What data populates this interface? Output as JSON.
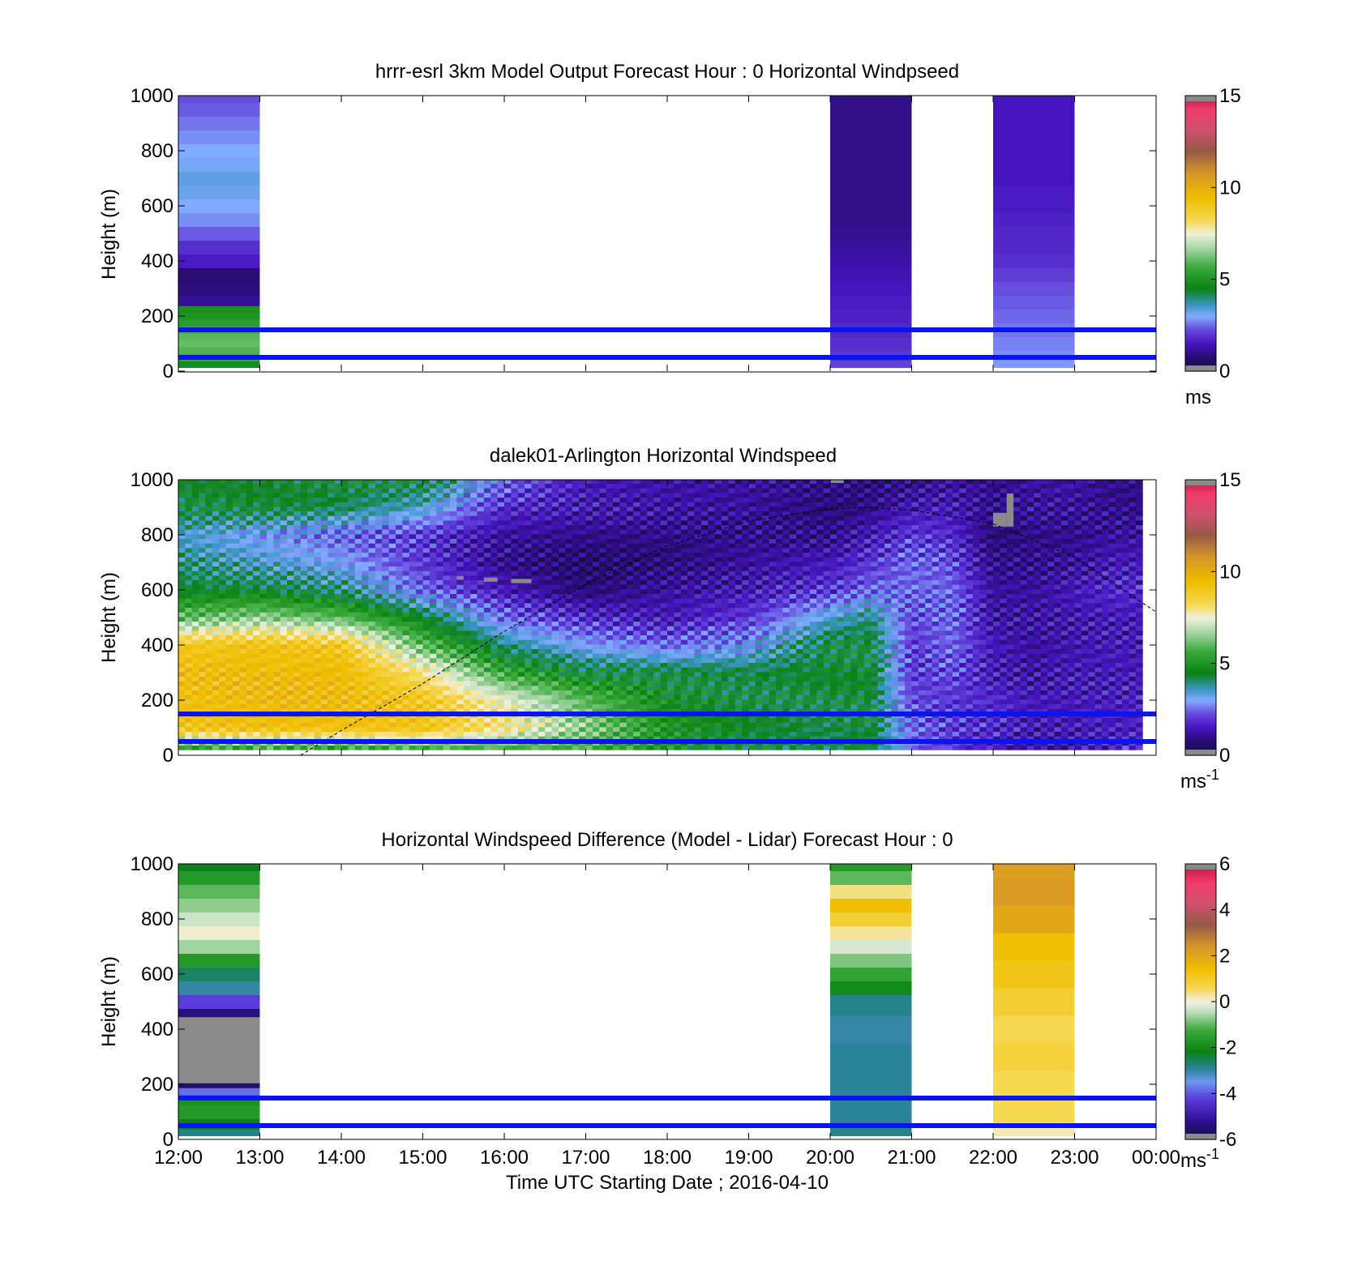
{
  "figure": {
    "xlabel": "Time UTC  Starting Date ; 2016-04-10",
    "time_ticks": [
      "12:00",
      "13:00",
      "14:00",
      "15:00",
      "16:00",
      "17:00",
      "18:00",
      "19:00",
      "20:00",
      "21:00",
      "22:00",
      "23:00",
      "00:00"
    ]
  },
  "chart_data": [
    {
      "type": "heatmap",
      "title": "hrrr-esrl 3km Model Output   Forecast Hour : 0 Horizontal Windpseed",
      "ylabel": "Height (m)",
      "ylim": [
        0,
        1000
      ],
      "yticks": [
        0,
        200,
        400,
        600,
        800,
        1000
      ],
      "xlim_hours": [
        12,
        24
      ],
      "colorbar": {
        "ticks": [
          "0",
          "5",
          "10",
          "15"
        ],
        "range": [
          0,
          15
        ],
        "unit": "ms",
        "unit_sup": "",
        "palette": "speed"
      },
      "reference_lines_m": [
        50,
        150
      ],
      "columns": [
        {
          "time_start": "12:00",
          "time_end": "13:00",
          "height_values": [
            [
              25,
              4.8
            ],
            [
              50,
              5.6
            ],
            [
              75,
              5.9
            ],
            [
              100,
              6.1
            ],
            [
              125,
              6.0
            ],
            [
              150,
              5.8
            ],
            [
              175,
              5.3
            ],
            [
              200,
              5.0
            ],
            [
              225,
              4.9
            ],
            [
              250,
              1.1
            ],
            [
              300,
              0.9
            ],
            [
              350,
              0.8
            ],
            [
              400,
              1.6
            ],
            [
              450,
              1.9
            ],
            [
              500,
              2.4
            ],
            [
              550,
              2.8
            ],
            [
              600,
              3.0
            ],
            [
              650,
              3.2
            ],
            [
              700,
              3.3
            ],
            [
              750,
              3.1
            ],
            [
              800,
              3.0
            ],
            [
              850,
              2.8
            ],
            [
              900,
              2.6
            ],
            [
              950,
              2.4
            ],
            [
              1000,
              2.3
            ]
          ]
        },
        {
          "time_start": "20:00",
          "time_end": "21:00",
          "height_values": [
            [
              25,
              2.2
            ],
            [
              50,
              2.0
            ],
            [
              100,
              1.9
            ],
            [
              150,
              1.8
            ],
            [
              200,
              1.7
            ],
            [
              250,
              1.6
            ],
            [
              300,
              1.5
            ],
            [
              350,
              1.4
            ],
            [
              400,
              1.3
            ],
            [
              450,
              1.2
            ],
            [
              500,
              1.1
            ],
            [
              550,
              1.0
            ],
            [
              600,
              1.0
            ],
            [
              650,
              1.0
            ],
            [
              700,
              1.0
            ],
            [
              750,
              1.0
            ],
            [
              800,
              1.0
            ],
            [
              850,
              1.0
            ],
            [
              900,
              1.0
            ],
            [
              950,
              1.0
            ],
            [
              1000,
              1.0
            ]
          ]
        },
        {
          "time_start": "22:00",
          "time_end": "23:00",
          "height_values": [
            [
              25,
              2.9
            ],
            [
              50,
              2.8
            ],
            [
              100,
              2.7
            ],
            [
              150,
              2.6
            ],
            [
              200,
              2.5
            ],
            [
              250,
              2.4
            ],
            [
              300,
              2.3
            ],
            [
              350,
              2.1
            ],
            [
              400,
              1.9
            ],
            [
              450,
              1.8
            ],
            [
              500,
              1.8
            ],
            [
              550,
              1.7
            ],
            [
              600,
              1.6
            ],
            [
              650,
              1.6
            ],
            [
              700,
              1.5
            ],
            [
              750,
              1.5
            ],
            [
              800,
              1.5
            ],
            [
              850,
              1.5
            ],
            [
              900,
              1.5
            ],
            [
              950,
              1.5
            ],
            [
              1000,
              1.5
            ]
          ]
        }
      ]
    },
    {
      "type": "heatmap",
      "title": "dalek01-Arlington  Horizontal Windspeed",
      "ylabel": "Height (m)",
      "ylim": [
        0,
        1000
      ],
      "yticks": [
        0,
        200,
        400,
        600,
        800,
        1000
      ],
      "xlim_hours": [
        12,
        24
      ],
      "colorbar": {
        "ticks": [
          "0",
          "5",
          "10",
          "15"
        ],
        "range": [
          0,
          15
        ],
        "unit": "ms",
        "unit_sup": "-1",
        "palette": "speed"
      },
      "reference_lines_m": [
        50,
        150
      ],
      "overlay_curve_points": [
        [
          13.5,
          0
        ],
        [
          14,
          90
        ],
        [
          15,
          260
        ],
        [
          16,
          450
        ],
        [
          17,
          620
        ],
        [
          18,
          760
        ],
        [
          19,
          850
        ],
        [
          20,
          895
        ],
        [
          20.5,
          900
        ],
        [
          21,
          890
        ],
        [
          22,
          840
        ],
        [
          23,
          720
        ],
        [
          24,
          520
        ]
      ],
      "profile_times_h": [
        12,
        13,
        14,
        15,
        16,
        17,
        18,
        19,
        20,
        20.5,
        21,
        21.5,
        22,
        22.5,
        23,
        23.5,
        24
      ],
      "profile_heights_m": [
        0,
        100,
        200,
        300,
        400,
        500,
        600,
        700,
        800,
        900,
        1000
      ],
      "profiles": [
        [
          4.0,
          9.2,
          9.3,
          9.4,
          9.0,
          6.0,
          4.5,
          4.0,
          3.5,
          4.5,
          4.5
        ],
        [
          4.2,
          9.4,
          9.5,
          9.5,
          9.2,
          6.5,
          4.5,
          3.5,
          3.0,
          4.5,
          4.5
        ],
        [
          4.0,
          9.3,
          9.5,
          9.5,
          9.0,
          6.0,
          4.0,
          3.0,
          2.5,
          4.2,
          4.5
        ],
        [
          4.5,
          9.2,
          9.0,
          8.0,
          6.0,
          4.5,
          2.5,
          2.0,
          2.0,
          3.5,
          4.5
        ],
        [
          5.0,
          8.0,
          7.5,
          5.5,
          4.0,
          2.5,
          1.5,
          1.0,
          1.2,
          1.8,
          2.5
        ],
        [
          5.5,
          6.5,
          6.0,
          4.5,
          3.0,
          1.8,
          0.8,
          0.6,
          1.0,
          1.5,
          1.5
        ],
        [
          5.0,
          5.0,
          4.8,
          4.5,
          2.5,
          1.5,
          1.2,
          0.8,
          1.0,
          1.3,
          1.3
        ],
        [
          4.5,
          4.5,
          4.5,
          4.3,
          3.0,
          2.0,
          1.5,
          1.2,
          1.0,
          1.2,
          1.2
        ],
        [
          4.2,
          4.2,
          4.5,
          4.5,
          4.5,
          3.5,
          2.0,
          1.5,
          1.0,
          0.8,
          1.0
        ],
        [
          4.5,
          4.5,
          4.5,
          4.5,
          4.5,
          4.0,
          2.5,
          2.0,
          1.5,
          1.0,
          0.8
        ],
        [
          2.5,
          2.5,
          2.2,
          2.0,
          2.0,
          2.2,
          2.5,
          2.5,
          2.0,
          1.5,
          1.0
        ],
        [
          2.0,
          2.0,
          2.0,
          2.2,
          2.5,
          2.5,
          2.5,
          2.2,
          1.8,
          1.5,
          1.2
        ],
        [
          1.5,
          1.8,
          1.8,
          1.5,
          1.5,
          1.3,
          1.2,
          1.0,
          0.8,
          1.0,
          1.0
        ],
        [
          1.2,
          1.5,
          1.5,
          1.3,
          1.2,
          1.3,
          1.2,
          1.0,
          1.0,
          1.2,
          1.2
        ],
        [
          1.3,
          1.5,
          1.5,
          1.5,
          1.4,
          1.4,
          1.5,
          1.2,
          1.0,
          1.2,
          1.3
        ],
        [
          1.8,
          1.6,
          1.6,
          1.5,
          1.5,
          1.5,
          1.8,
          1.5,
          1.2,
          1.0,
          1.0
        ],
        [
          1.8,
          1.6,
          1.6,
          1.5,
          1.5,
          1.5,
          1.8,
          1.5,
          1.2,
          1.0,
          1.0
        ]
      ],
      "missing_patches": [
        {
          "time_start": "22:00",
          "time_end": "22:10",
          "height_start": 830,
          "height_end": 880
        },
        {
          "time_start": "22:10",
          "time_end": "22:15",
          "height_start": 830,
          "height_end": 950
        },
        {
          "time_start": "20:00",
          "time_end": "20:10",
          "height_start": 1000,
          "height_end": 1000
        },
        {
          "time_start": "15:25",
          "time_end": "15:30",
          "height_start": 640,
          "height_end": 650
        },
        {
          "time_start": "15:45",
          "time_end": "15:55",
          "height_start": 630,
          "height_end": 645
        },
        {
          "time_start": "16:05",
          "time_end": "16:20",
          "height_start": 625,
          "height_end": 640
        }
      ]
    },
    {
      "type": "heatmap",
      "title": "Horizontal Windspeed Difference (Model - Lidar) Forecast Hour : 0",
      "ylabel": "Height (m)",
      "ylim": [
        0,
        1000
      ],
      "yticks": [
        0,
        200,
        400,
        600,
        800,
        1000
      ],
      "xlim_hours": [
        12,
        24
      ],
      "colorbar": {
        "ticks": [
          "-6",
          "-4",
          "-2",
          "0",
          "2",
          "4",
          "6"
        ],
        "range": [
          -6,
          6
        ],
        "unit": "ms",
        "unit_sup": "-1",
        "palette": "diff"
      },
      "reference_lines_m": [
        50,
        150
      ],
      "columns": [
        {
          "time_start": "12:00",
          "time_end": "13:00",
          "height_values": [
            [
              25,
              -2.8
            ],
            [
              50,
              -2.2
            ],
            [
              100,
              -1.6
            ],
            [
              150,
              -1.8
            ],
            [
              175,
              -3.8
            ],
            [
              200,
              -5.5
            ],
            [
              210,
              "missing"
            ],
            [
              440,
              "missing"
            ],
            [
              450,
              -5.4
            ],
            [
              500,
              -4.2
            ],
            [
              550,
              -3.0
            ],
            [
              600,
              -2.6
            ],
            [
              650,
              -1.6
            ],
            [
              700,
              -0.6
            ],
            [
              750,
              0.1
            ],
            [
              800,
              -0.3
            ],
            [
              850,
              -0.7
            ],
            [
              900,
              -1.0
            ],
            [
              950,
              -1.6
            ],
            [
              1000,
              -2.2
            ]
          ]
        },
        {
          "time_start": "20:00",
          "time_end": "21:00",
          "height_values": [
            [
              25,
              -2.8
            ],
            [
              100,
              -2.9
            ],
            [
              200,
              -2.9
            ],
            [
              300,
              -2.9
            ],
            [
              400,
              -3.0
            ],
            [
              500,
              -2.8
            ],
            [
              550,
              -2.0
            ],
            [
              600,
              -1.4
            ],
            [
              650,
              -0.8
            ],
            [
              700,
              -0.2
            ],
            [
              750,
              0.3
            ],
            [
              800,
              0.9
            ],
            [
              850,
              1.4
            ],
            [
              900,
              0.4
            ],
            [
              950,
              -1.0
            ],
            [
              1000,
              -1.6
            ]
          ]
        },
        {
          "time_start": "22:00",
          "time_end": "23:00",
          "height_values": [
            [
              25,
              0.2
            ],
            [
              100,
              0.6
            ],
            [
              200,
              0.6
            ],
            [
              300,
              0.8
            ],
            [
              400,
              0.6
            ],
            [
              500,
              0.9
            ],
            [
              600,
              1.2
            ],
            [
              700,
              1.4
            ],
            [
              800,
              2.0
            ],
            [
              900,
              2.3
            ],
            [
              1000,
              2.2
            ]
          ]
        }
      ]
    }
  ]
}
